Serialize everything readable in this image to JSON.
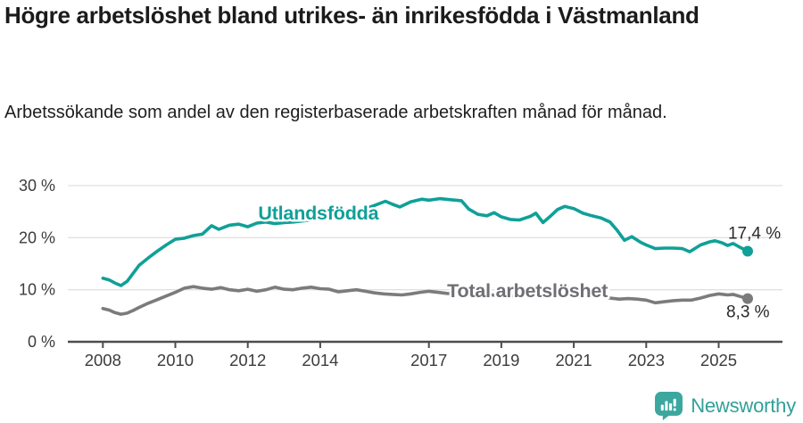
{
  "header": {
    "title": "Högre arbetslöshet bland utrikes- än inrikesfödda i Västmanland",
    "subtitle": "Arbetssökande som andel av den registerbaserade arbetskraften månad för månad."
  },
  "chart_data": {
    "type": "line",
    "title": "Högre arbetslöshet bland utrikes- än inrikesfödda i Västmanland",
    "subtitle": "Arbetssökande som andel av den registerbaserade arbetskraften månad för månad.",
    "xlabel": "",
    "ylabel": "",
    "grid": "horizontal",
    "legend_position": "inline-labels",
    "ylim": [
      0,
      30
    ],
    "xlim": [
      2007.05,
      2026.35
    ],
    "y_ticks": [
      {
        "value": 0,
        "label": "0 %"
      },
      {
        "value": 10,
        "label": "10 %"
      },
      {
        "value": 20,
        "label": "20 %"
      },
      {
        "value": 30,
        "label": "30 %"
      }
    ],
    "x_ticks": [
      {
        "value": 2008,
        "label": "2008"
      },
      {
        "value": 2010,
        "label": "2010"
      },
      {
        "value": 2012,
        "label": "2012"
      },
      {
        "value": 2014,
        "label": "2014"
      },
      {
        "value": 2017,
        "label": "2017"
      },
      {
        "value": 2019,
        "label": "2019"
      },
      {
        "value": 2021,
        "label": "2021"
      },
      {
        "value": 2023,
        "label": "2023"
      },
      {
        "value": 2025,
        "label": "2025"
      }
    ],
    "series": [
      {
        "name": "Utlandsfödda",
        "color": "#10A098",
        "label_color": "#10A098",
        "end_label": "17,4 %",
        "end_value": 17.4,
        "label_anchor": {
          "x": 2013.95,
          "y": 24.7
        },
        "points": [
          [
            2008.0,
            12.2
          ],
          [
            2008.17,
            11.9
          ],
          [
            2008.33,
            11.3
          ],
          [
            2008.5,
            10.8
          ],
          [
            2008.67,
            11.6
          ],
          [
            2008.83,
            13.1
          ],
          [
            2009.0,
            14.7
          ],
          [
            2009.25,
            16.1
          ],
          [
            2009.5,
            17.4
          ],
          [
            2009.75,
            18.6
          ],
          [
            2010.0,
            19.7
          ],
          [
            2010.25,
            19.9
          ],
          [
            2010.5,
            20.4
          ],
          [
            2010.75,
            20.7
          ],
          [
            2011.0,
            22.3
          ],
          [
            2011.2,
            21.6
          ],
          [
            2011.5,
            22.4
          ],
          [
            2011.75,
            22.6
          ],
          [
            2012.0,
            22.1
          ],
          [
            2012.25,
            22.8
          ],
          [
            2012.5,
            23.0
          ],
          [
            2012.75,
            22.7
          ],
          [
            2013.0,
            22.9
          ],
          [
            2013.25,
            23.0
          ],
          [
            2013.5,
            23.2
          ],
          [
            2013.75,
            23.4
          ],
          [
            2014.0,
            23.6
          ],
          [
            2014.25,
            23.9
          ],
          [
            2014.5,
            24.3
          ],
          [
            2014.75,
            24.7
          ],
          [
            2015.0,
            25.1
          ],
          [
            2015.25,
            25.6
          ],
          [
            2015.5,
            26.2
          ],
          [
            2015.8,
            27.0
          ],
          [
            2016.0,
            26.4
          ],
          [
            2016.2,
            25.9
          ],
          [
            2016.5,
            26.9
          ],
          [
            2016.8,
            27.4
          ],
          [
            2017.0,
            27.2
          ],
          [
            2017.3,
            27.5
          ],
          [
            2017.6,
            27.3
          ],
          [
            2017.9,
            27.1
          ],
          [
            2018.1,
            25.5
          ],
          [
            2018.35,
            24.5
          ],
          [
            2018.6,
            24.2
          ],
          [
            2018.8,
            24.8
          ],
          [
            2019.0,
            24.0
          ],
          [
            2019.25,
            23.5
          ],
          [
            2019.5,
            23.4
          ],
          [
            2019.8,
            24.1
          ],
          [
            2019.95,
            24.7
          ],
          [
            2020.15,
            22.9
          ],
          [
            2020.35,
            24.1
          ],
          [
            2020.55,
            25.4
          ],
          [
            2020.75,
            26.0
          ],
          [
            2021.0,
            25.6
          ],
          [
            2021.25,
            24.7
          ],
          [
            2021.5,
            24.2
          ],
          [
            2021.75,
            23.8
          ],
          [
            2022.0,
            23.0
          ],
          [
            2022.2,
            21.4
          ],
          [
            2022.4,
            19.5
          ],
          [
            2022.6,
            20.2
          ],
          [
            2022.85,
            19.1
          ],
          [
            2023.0,
            18.6
          ],
          [
            2023.25,
            17.9
          ],
          [
            2023.5,
            18.0
          ],
          [
            2023.75,
            18.0
          ],
          [
            2024.0,
            17.9
          ],
          [
            2024.2,
            17.3
          ],
          [
            2024.5,
            18.6
          ],
          [
            2024.75,
            19.2
          ],
          [
            2024.9,
            19.4
          ],
          [
            2025.1,
            19.0
          ],
          [
            2025.25,
            18.5
          ],
          [
            2025.4,
            18.9
          ],
          [
            2025.6,
            18.1
          ],
          [
            2025.8,
            17.4
          ]
        ]
      },
      {
        "name": "Total arbetslöshet",
        "color": "#7B7B7B",
        "label_color": "#707074",
        "end_label": "8,3 %",
        "end_value": 8.3,
        "label_anchor": {
          "x": 2019.72,
          "y": 9.8
        },
        "points": [
          [
            2008.0,
            6.4
          ],
          [
            2008.17,
            6.1
          ],
          [
            2008.33,
            5.6
          ],
          [
            2008.5,
            5.3
          ],
          [
            2008.67,
            5.5
          ],
          [
            2008.83,
            6.0
          ],
          [
            2009.0,
            6.6
          ],
          [
            2009.25,
            7.4
          ],
          [
            2009.5,
            8.1
          ],
          [
            2009.75,
            8.8
          ],
          [
            2010.0,
            9.5
          ],
          [
            2010.25,
            10.3
          ],
          [
            2010.5,
            10.6
          ],
          [
            2010.75,
            10.3
          ],
          [
            2011.0,
            10.1
          ],
          [
            2011.25,
            10.4
          ],
          [
            2011.5,
            10.0
          ],
          [
            2011.75,
            9.8
          ],
          [
            2012.0,
            10.1
          ],
          [
            2012.25,
            9.7
          ],
          [
            2012.5,
            10.0
          ],
          [
            2012.75,
            10.5
          ],
          [
            2013.0,
            10.1
          ],
          [
            2013.25,
            10.0
          ],
          [
            2013.5,
            10.3
          ],
          [
            2013.75,
            10.5
          ],
          [
            2014.0,
            10.2
          ],
          [
            2014.25,
            10.1
          ],
          [
            2014.5,
            9.6
          ],
          [
            2014.75,
            9.8
          ],
          [
            2015.0,
            10.0
          ],
          [
            2015.25,
            9.7
          ],
          [
            2015.5,
            9.4
          ],
          [
            2015.75,
            9.2
          ],
          [
            2016.0,
            9.1
          ],
          [
            2016.25,
            9.0
          ],
          [
            2016.5,
            9.2
          ],
          [
            2016.75,
            9.5
          ],
          [
            2017.0,
            9.7
          ],
          [
            2017.25,
            9.5
          ],
          [
            2017.5,
            9.3
          ],
          [
            2017.75,
            9.2
          ],
          [
            2018.0,
            9.0
          ],
          [
            2018.25,
            8.8
          ],
          [
            2018.5,
            8.9
          ],
          [
            2018.75,
            9.0
          ],
          [
            2019.0,
            8.8
          ],
          [
            2019.25,
            8.7
          ],
          [
            2019.5,
            8.9
          ],
          [
            2019.75,
            9.2
          ],
          [
            2020.0,
            9.0
          ],
          [
            2020.25,
            9.8
          ],
          [
            2020.5,
            10.6
          ],
          [
            2020.75,
            10.4
          ],
          [
            2021.0,
            10.2
          ],
          [
            2021.25,
            9.9
          ],
          [
            2021.5,
            9.5
          ],
          [
            2021.75,
            9.0
          ],
          [
            2022.0,
            8.4
          ],
          [
            2022.25,
            8.2
          ],
          [
            2022.5,
            8.3
          ],
          [
            2022.75,
            8.2
          ],
          [
            2023.0,
            8.0
          ],
          [
            2023.25,
            7.5
          ],
          [
            2023.5,
            7.7
          ],
          [
            2023.75,
            7.9
          ],
          [
            2024.0,
            8.0
          ],
          [
            2024.25,
            8.0
          ],
          [
            2024.5,
            8.4
          ],
          [
            2024.75,
            8.9
          ],
          [
            2025.0,
            9.2
          ],
          [
            2025.25,
            9.0
          ],
          [
            2025.4,
            9.1
          ],
          [
            2025.6,
            8.7
          ],
          [
            2025.8,
            8.3
          ]
        ]
      }
    ],
    "colors": {
      "grid": "#E1E1E1",
      "axis": "#4D4D4D",
      "tick_label": "#3C3C3C",
      "end_label": "#2A2A2A",
      "background": "#FFFFFF"
    }
  },
  "footer": {
    "brand": "Newsworthy",
    "brand_color": "#31A098",
    "logo_icon": "bar-chart-speech-bubble"
  }
}
